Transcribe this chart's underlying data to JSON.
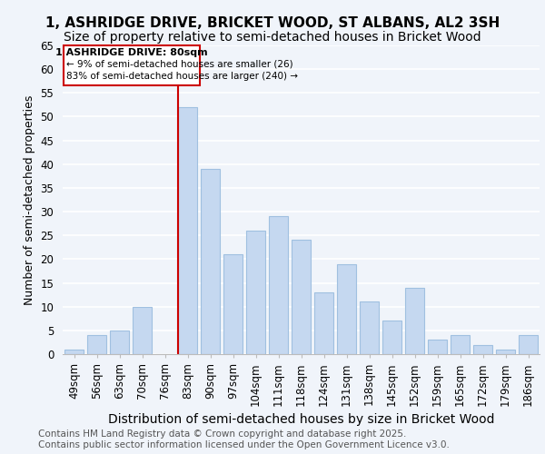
{
  "title_line1": "1, ASHRIDGE DRIVE, BRICKET WOOD, ST ALBANS, AL2 3SH",
  "title_line2": "Size of property relative to semi-detached houses in Bricket Wood",
  "categories": [
    "49sqm",
    "56sqm",
    "63sqm",
    "70sqm",
    "76sqm",
    "83sqm",
    "90sqm",
    "97sqm",
    "104sqm",
    "111sqm",
    "118sqm",
    "124sqm",
    "131sqm",
    "138sqm",
    "145sqm",
    "152sqm",
    "159sqm",
    "165sqm",
    "172sqm",
    "179sqm",
    "186sqm"
  ],
  "values": [
    1,
    4,
    5,
    10,
    0,
    52,
    39,
    21,
    26,
    29,
    24,
    13,
    19,
    11,
    7,
    14,
    3,
    4,
    2,
    1,
    4
  ],
  "bar_color": "#c5d8f0",
  "bar_edgecolor": "#a0c0e0",
  "vline_index": 5,
  "vline_color": "#cc0000",
  "ylabel": "Number of semi-detached properties",
  "xlabel": "Distribution of semi-detached houses by size in Bricket Wood",
  "ylim": [
    0,
    65
  ],
  "yticks": [
    0,
    5,
    10,
    15,
    20,
    25,
    30,
    35,
    40,
    45,
    50,
    55,
    60,
    65
  ],
  "annotation_title": "1 ASHRIDGE DRIVE: 80sqm",
  "annotation_line1": "← 9% of semi-detached houses are smaller (26)",
  "annotation_line2": "83% of semi-detached houses are larger (240) →",
  "annotation_box_color": "#ffffff",
  "annotation_box_edgecolor": "#cc0000",
  "footer_line1": "Contains HM Land Registry data © Crown copyright and database right 2025.",
  "footer_line2": "Contains public sector information licensed under the Open Government Licence v3.0.",
  "background_color": "#f0f4fa",
  "grid_color": "#ffffff",
  "title_fontsize": 11,
  "subtitle_fontsize": 10,
  "xlabel_fontsize": 10,
  "ylabel_fontsize": 9,
  "tick_fontsize": 8.5,
  "footer_fontsize": 7.5
}
